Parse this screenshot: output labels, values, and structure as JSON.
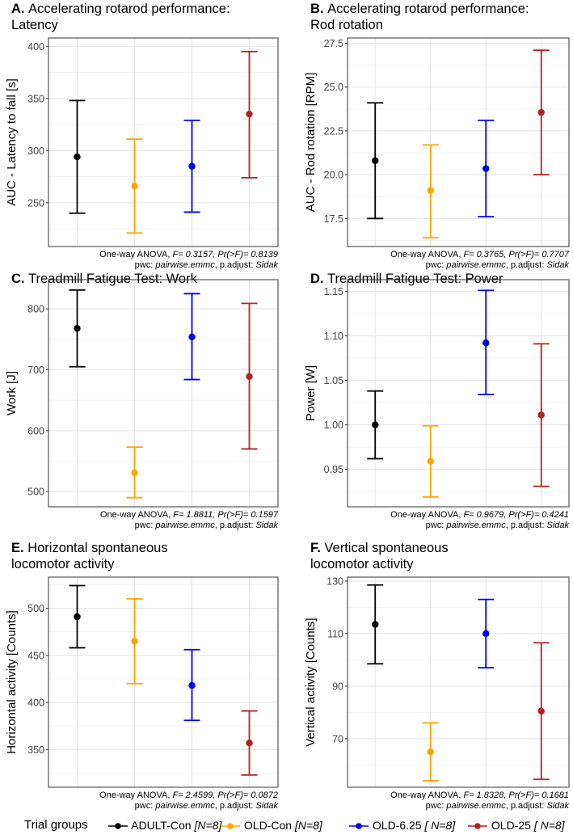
{
  "figure": {
    "legend_title": "Trial groups",
    "groups": [
      {
        "name": "ADULT-Con",
        "n": "[N=8]",
        "color": "#000000"
      },
      {
        "name": "OLD-Con",
        "n": "[N=8]",
        "color": "#FFA500"
      },
      {
        "name": "OLD-6.25",
        "n": "[ N=8]",
        "color": "#0000EE"
      },
      {
        "name": "OLD-25",
        "n": "[ N=8]",
        "color": "#B22222"
      }
    ]
  },
  "chart_data": [
    {
      "type": "errorbar",
      "id": "A",
      "title_letter": "A.",
      "title_lines": [
        "Accelerating rotarod performance:",
        "Latency"
      ],
      "ylabel": "AUC - Latency to fall [s]",
      "ylim": [
        208,
        408
      ],
      "yticks": [
        250,
        300,
        350,
        400
      ],
      "tick_labels": [
        "250",
        "300",
        "350",
        "400"
      ],
      "points": [
        {
          "group": "ADULT-Con",
          "mean": 294,
          "lower": 240,
          "upper": 348
        },
        {
          "group": "OLD-Con",
          "mean": 266,
          "lower": 221,
          "upper": 311
        },
        {
          "group": "OLD-6.25",
          "mean": 285,
          "lower": 241,
          "upper": 329
        },
        {
          "group": "OLD-25",
          "mean": 335,
          "lower": 274,
          "upper": 395
        }
      ],
      "caption_prefix": "One-way ANOVA, ",
      "caption_stats": "F= 0.3157, Pr(>F)= 0.8139",
      "pwc_label": "pwc: ",
      "pwc_method": "pairwise.emmc",
      "padj_label": ", p.adjust: ",
      "padj_method": "Sidak"
    },
    {
      "type": "errorbar",
      "id": "B",
      "title_letter": "B.",
      "title_lines": [
        "Accelerating rotarod performance:",
        "Rod rotation"
      ],
      "ylabel": "AUC - Rod rotation [RPM]",
      "ylim": [
        15.9,
        27.8
      ],
      "yticks": [
        17.5,
        20.0,
        22.5,
        25.0,
        27.5
      ],
      "tick_labels": [
        "17.5",
        "20.0",
        "22.5",
        "25.0",
        "27.5"
      ],
      "points": [
        {
          "group": "ADULT-Con",
          "mean": 20.8,
          "lower": 17.5,
          "upper": 24.1
        },
        {
          "group": "OLD-Con",
          "mean": 19.1,
          "lower": 16.4,
          "upper": 21.7
        },
        {
          "group": "OLD-6.25",
          "mean": 20.35,
          "lower": 17.6,
          "upper": 23.1
        },
        {
          "group": "OLD-25",
          "mean": 23.55,
          "lower": 20.0,
          "upper": 27.1
        }
      ],
      "caption_prefix": "One-way ANOVA, ",
      "caption_stats": "F= 0.3765, Pr(>F)= 0.7707",
      "pwc_label": "pwc: ",
      "pwc_method": "pairwise.emmc",
      "padj_label": ", p.adjust: ",
      "padj_method": "Sidak"
    },
    {
      "type": "errorbar",
      "id": "C",
      "title_letter": "C.",
      "title_lines": [
        "Treadmill Fatigue Test: Work"
      ],
      "ylabel": "Work [J]",
      "ylim": [
        475,
        848
      ],
      "yticks": [
        500,
        600,
        700,
        800
      ],
      "tick_labels": [
        "500",
        "600",
        "700",
        "800"
      ],
      "points": [
        {
          "group": "ADULT-Con",
          "mean": 768,
          "lower": 705,
          "upper": 831
        },
        {
          "group": "OLD-Con",
          "mean": 531,
          "lower": 490,
          "upper": 573
        },
        {
          "group": "OLD-6.25",
          "mean": 754,
          "lower": 684,
          "upper": 825
        },
        {
          "group": "OLD-25",
          "mean": 689,
          "lower": 570,
          "upper": 809
        }
      ],
      "caption_prefix": "One-way ANOVA, ",
      "caption_stats": "F= 1.8811, Pr(>F)= 0.1597",
      "pwc_label": "pwc: ",
      "pwc_method": "pairwise.emmc",
      "padj_label": ", p.adjust: ",
      "padj_method": "Sidak"
    },
    {
      "type": "errorbar",
      "id": "D",
      "title_letter": "D.",
      "title_lines": [
        "Treadmill Fatigue Test: Power"
      ],
      "ylabel": "Power [W]",
      "ylim": [
        0.908,
        1.163
      ],
      "yticks": [
        0.95,
        1.0,
        1.05,
        1.1,
        1.15
      ],
      "tick_labels": [
        "0.95",
        "1.00",
        "1.05",
        "1.10",
        "1.15"
      ],
      "points": [
        {
          "group": "ADULT-Con",
          "mean": 1.0,
          "lower": 0.962,
          "upper": 1.038
        },
        {
          "group": "OLD-Con",
          "mean": 0.959,
          "lower": 0.919,
          "upper": 0.999
        },
        {
          "group": "OLD-6.25",
          "mean": 1.092,
          "lower": 1.034,
          "upper": 1.151
        },
        {
          "group": "OLD-25",
          "mean": 1.011,
          "lower": 0.931,
          "upper": 1.091
        }
      ],
      "caption_prefix": "One-way ANOVA, ",
      "caption_stats": "F= 0.9679, Pr(>F)= 0.4241",
      "pwc_label": "pwc: ",
      "pwc_method": "pairwise.emmc",
      "padj_label": ", p.adjust: ",
      "padj_method": "Sidak"
    },
    {
      "type": "errorbar",
      "id": "E",
      "title_letter": "E.",
      "title_lines": [
        "Horizontal spontaneous",
        "locomotor activity"
      ],
      "ylabel": "Horizontal activity [Counts]",
      "ylim": [
        310,
        533
      ],
      "yticks": [
        350,
        400,
        450,
        500
      ],
      "tick_labels": [
        "350",
        "400",
        "450",
        "500"
      ],
      "points": [
        {
          "group": "ADULT-Con",
          "mean": 491,
          "lower": 458,
          "upper": 524
        },
        {
          "group": "OLD-Con",
          "mean": 465,
          "lower": 420,
          "upper": 510
        },
        {
          "group": "OLD-6.25",
          "mean": 418,
          "lower": 381,
          "upper": 456
        },
        {
          "group": "OLD-25",
          "mean": 357,
          "lower": 323,
          "upper": 391
        }
      ],
      "caption_prefix": "One-way ANOVA, ",
      "caption_stats": "F= 2.4599, Pr(>F)= 0.0872",
      "pwc_label": "pwc: ",
      "pwc_method": "pairwise.emmc",
      "padj_label": ", p.adjust: ",
      "padj_method": "Sidak"
    },
    {
      "type": "errorbar",
      "id": "F",
      "title_letter": "F.",
      "title_lines": [
        "Vertical spontaneous",
        "locomotor activity"
      ],
      "ylabel": "Vertical activity [Counts]",
      "ylim": [
        51.5,
        131.5
      ],
      "yticks": [
        70,
        90,
        110,
        130
      ],
      "tick_labels": [
        "70",
        "90",
        "110",
        "130"
      ],
      "points": [
        {
          "group": "ADULT-Con",
          "mean": 113.5,
          "lower": 98.5,
          "upper": 128.5
        },
        {
          "group": "OLD-Con",
          "mean": 65,
          "lower": 54,
          "upper": 76
        },
        {
          "group": "OLD-6.25",
          "mean": 110,
          "lower": 97,
          "upper": 123
        },
        {
          "group": "OLD-25",
          "mean": 80.5,
          "lower": 54.5,
          "upper": 106.5
        }
      ],
      "caption_prefix": "One-way ANOVA, ",
      "caption_stats": "F= 1.8328, Pr(>F)= 0.1681",
      "pwc_label": "pwc: ",
      "pwc_method": "pairwise.emmc",
      "padj_label": ", p.adjust: ",
      "padj_method": "Sidak"
    }
  ]
}
